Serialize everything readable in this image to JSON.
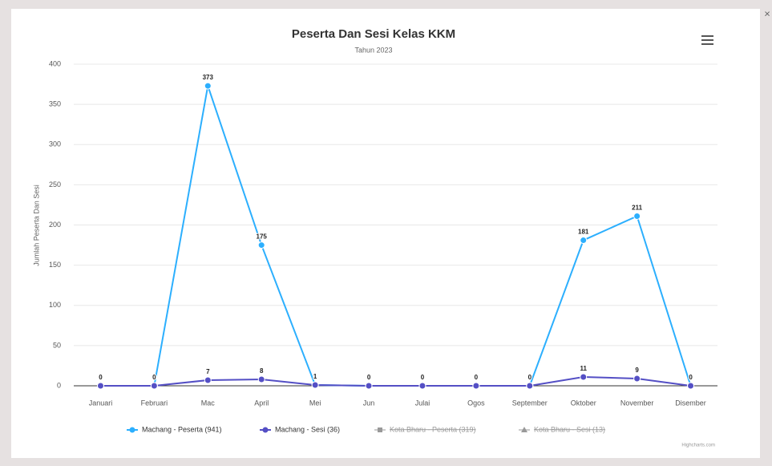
{
  "chart_data": {
    "type": "line",
    "title": "Peserta Dan Sesi Kelas KKM",
    "subtitle": "Tahun 2023",
    "y_axis_label": "Jumlah Peserta Dan Sesi",
    "categories": [
      "Januari",
      "Februari",
      "Mac",
      "April",
      "Mei",
      "Jun",
      "Julai",
      "Ogos",
      "September",
      "Oktober",
      "November",
      "Disember"
    ],
    "series": [
      {
        "name": "Machang - Peserta (941)",
        "color": "#2caffe",
        "values": [
          0,
          0,
          373,
          175,
          1,
          0,
          0,
          0,
          0,
          181,
          211,
          0
        ]
      },
      {
        "name": "Machang - Sesi (36)",
        "color": "#544fc5",
        "values": [
          0,
          0,
          7,
          8,
          1,
          0,
          0,
          0,
          0,
          11,
          9,
          0
        ]
      }
    ],
    "hidden_legend": [
      "Kota Bharu - Peserta (319)",
      "Kota Bharu - Sesi (13)"
    ],
    "ylim": [
      0,
      400
    ],
    "yticks": [
      0,
      50,
      100,
      150,
      200,
      250,
      300,
      350,
      400
    ],
    "grid": true,
    "credit": "Highcharts.com"
  }
}
